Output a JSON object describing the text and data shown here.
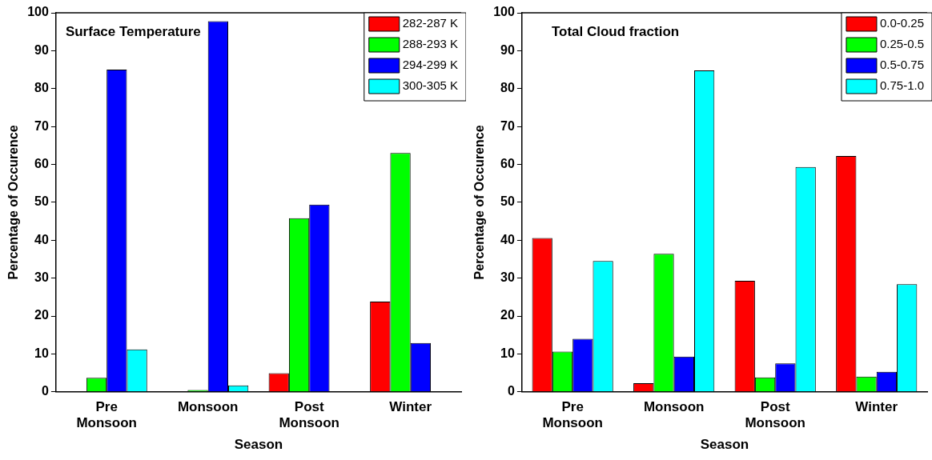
{
  "chart_data": [
    {
      "type": "bar",
      "title": "Surface Temperature",
      "xlabel": "Season",
      "ylabel": "Percentage of Occurence",
      "categories": [
        "Pre Monsoon",
        "Monsoon",
        "Post Monsoon",
        "Winter"
      ],
      "series": [
        {
          "name": "282-287 K",
          "color": "#ff0000",
          "values": [
            0,
            0,
            4.9,
            23.8
          ]
        },
        {
          "name": "288-293 K",
          "color": "#00ff00",
          "values": [
            3.7,
            0.5,
            45.8,
            63.0
          ]
        },
        {
          "name": "294-299 K",
          "color": "#0000ff",
          "values": [
            85.0,
            97.8,
            49.4,
            12.9
          ]
        },
        {
          "name": "300-305 K",
          "color": "#00ffff",
          "values": [
            11.2,
            1.7,
            0,
            null
          ]
        }
      ],
      "ylim": [
        0,
        100
      ],
      "yticks": [
        0,
        10,
        20,
        30,
        40,
        50,
        60,
        70,
        80,
        90,
        100
      ],
      "grid": false,
      "legend": "top right"
    },
    {
      "type": "bar",
      "title": "Total Cloud fraction",
      "xlabel": "Season",
      "ylabel": "Percentage of Occurence",
      "categories": [
        "Pre Monsoon",
        "Monsoon",
        "Post Monsoon",
        "Winter"
      ],
      "series": [
        {
          "name": "0.0-0.25",
          "color": "#ff0000",
          "values": [
            40.6,
            2.3,
            29.3,
            62.2
          ]
        },
        {
          "name": "0.25-0.5",
          "color": "#00ff00",
          "values": [
            10.6,
            36.4,
            3.8,
            4.0
          ]
        },
        {
          "name": "0.5-0.75",
          "color": "#0000ff",
          "values": [
            14.0,
            9.3,
            7.5,
            5.3
          ]
        },
        {
          "name": "0.75-1.0",
          "color": "#00ffff",
          "values": [
            34.5,
            84.8,
            59.3,
            28.4
          ]
        }
      ],
      "ylim": [
        0,
        100
      ],
      "yticks": [
        0,
        10,
        20,
        30,
        40,
        50,
        60,
        70,
        80,
        90,
        100
      ],
      "grid": false,
      "legend": "top right"
    }
  ]
}
